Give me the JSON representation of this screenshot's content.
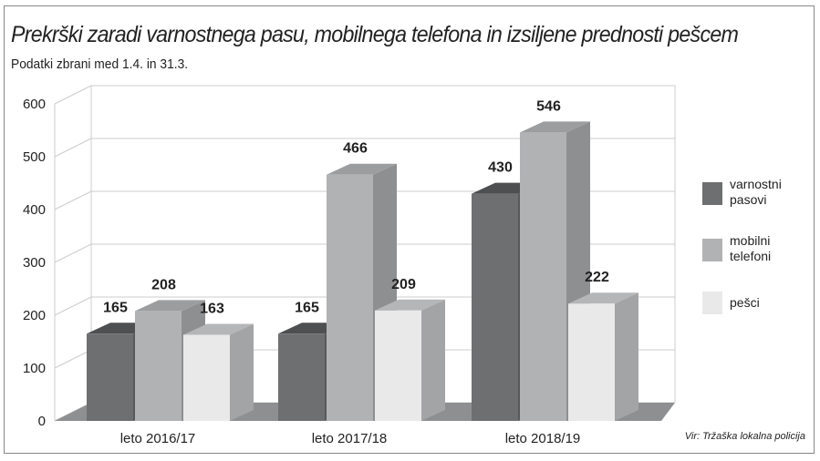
{
  "chart_data": {
    "type": "bar",
    "title": "Prekrški zaradi varnostnega pasu, mobilnega telefona in izsiljene prednosti pešcem",
    "subtitle": "Podatki zbrani med 1.4. in 31.3.",
    "categories": [
      "leto 2016/17",
      "leto 2017/18",
      "leto 2018/19"
    ],
    "series": [
      {
        "name": "varnostni pasovi",
        "legend_lines": [
          "varnostni",
          "pasovi"
        ],
        "values": [
          165,
          165,
          430
        ],
        "color": "#6e6f71",
        "side": "#58595b",
        "top": "#4e4f51"
      },
      {
        "name": "mobilni telefoni",
        "legend_lines": [
          "mobilni",
          "telefoni"
        ],
        "values": [
          208,
          466,
          546
        ],
        "color": "#b1b2b4",
        "side": "#8e8f91",
        "top": "#9c9d9f"
      },
      {
        "name": "pešci",
        "legend_lines": [
          "pešci"
        ],
        "values": [
          163,
          209,
          222
        ],
        "color": "#e9e9ea",
        "side": "#a3a4a6",
        "top": "#b5b6b8"
      }
    ],
    "yticks": [
      0,
      100,
      200,
      300,
      400,
      500,
      600
    ],
    "ylim": [
      0,
      600
    ],
    "xlabel": "",
    "ylabel": "",
    "legend_position": "right",
    "source": "Vir: Tržaška lokalna policija"
  }
}
